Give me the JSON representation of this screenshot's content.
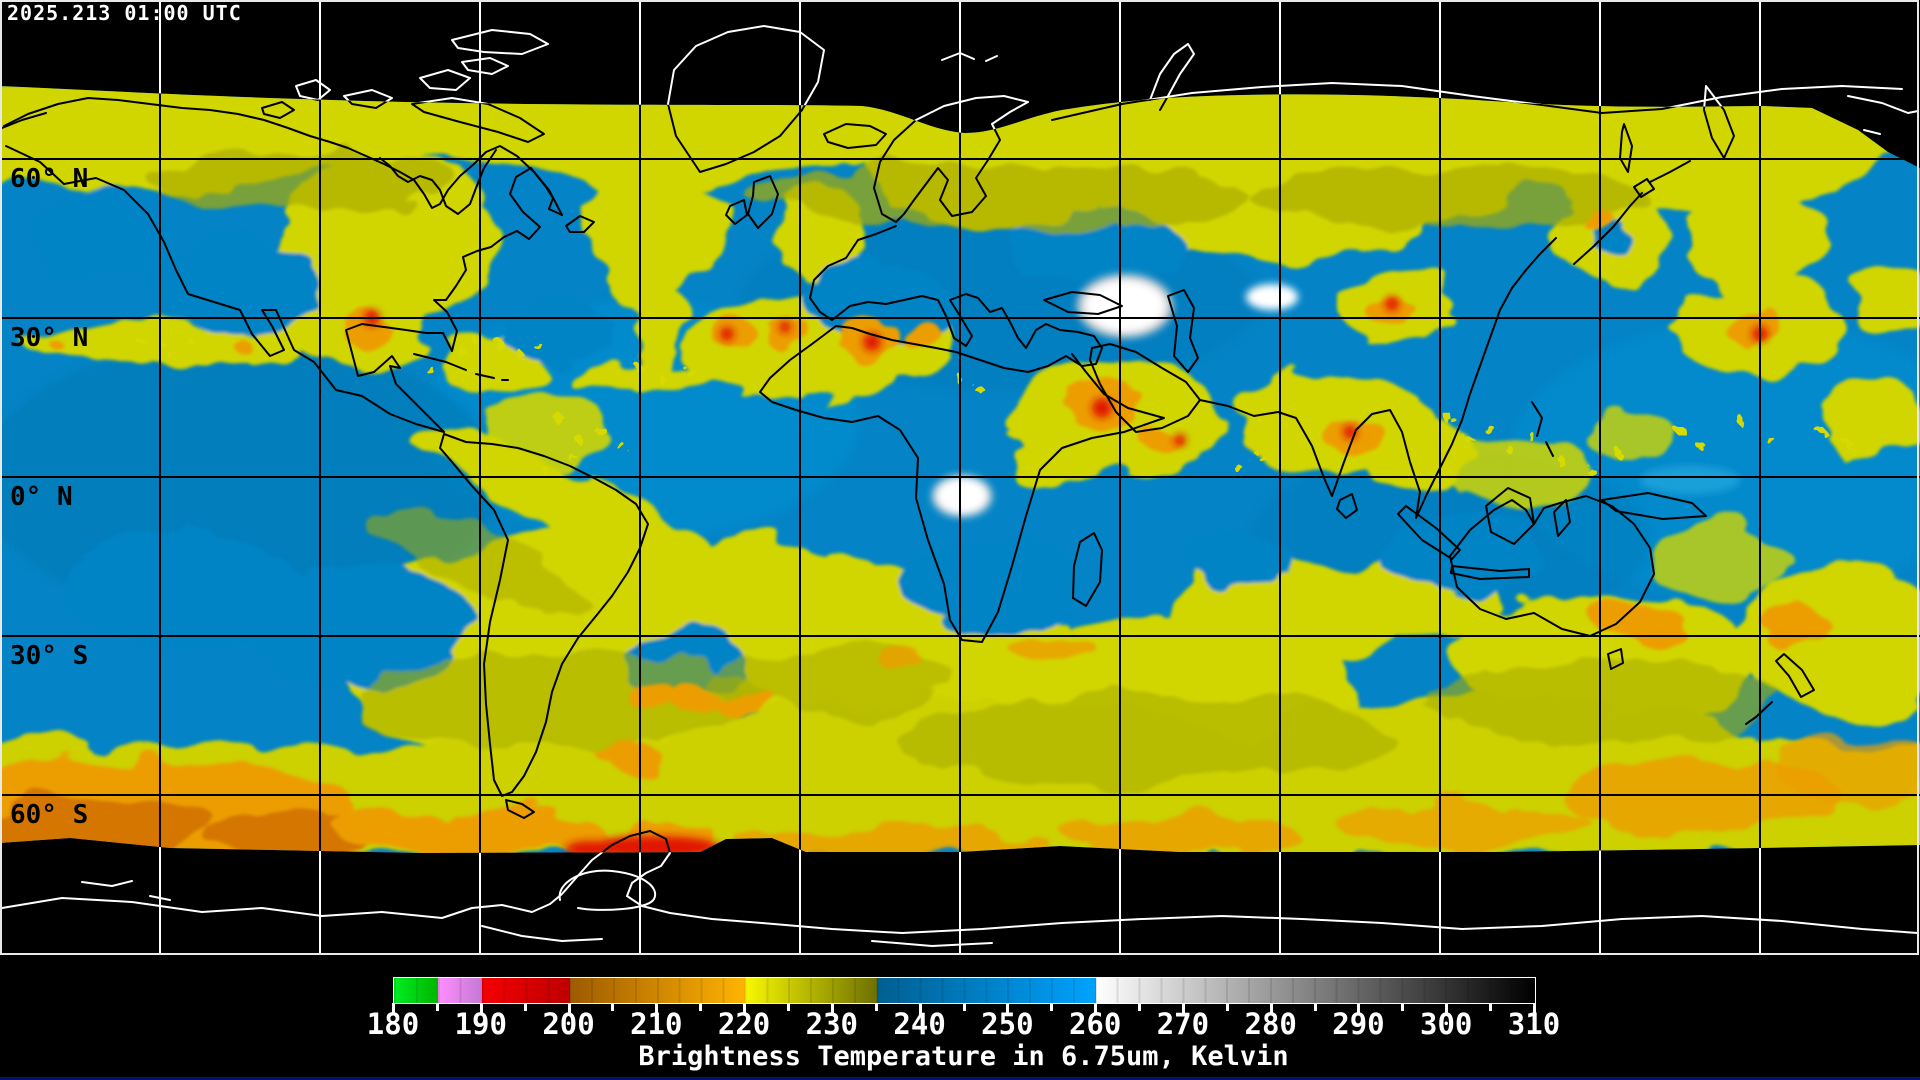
{
  "header": {
    "timestamp": "2025.213 01:00 UTC"
  },
  "map": {
    "latitude_labels": [
      {
        "label": "60° N"
      },
      {
        "label": "30° N"
      },
      {
        "label": "0° N"
      },
      {
        "label": "30° S"
      },
      {
        "label": "60° S"
      }
    ],
    "grid_color_over_data": "#000000",
    "grid_color_over_nodata": "#ffffff",
    "coastline_color_over_data": "#000000",
    "coastline_color_over_nodata": "#ffffff",
    "no_data_color": "#000000",
    "dominant_colors": {
      "dry_upper_air_blue": "#0484c6",
      "moist_yellow": "#d2d600",
      "cold_cloud_orange": "#ec9e00",
      "coldest_cloud_red": "#e11800",
      "warm_surface_white": "#ffffff"
    }
  },
  "colorbar": {
    "caption": "Brightness Temperature in 6.75um, Kelvin",
    "scale_min": 180,
    "scale_max": 310,
    "minor_tick_step": 5,
    "major_tick_step": 10,
    "tick_values": [
      180,
      190,
      200,
      210,
      220,
      230,
      240,
      250,
      260,
      270,
      280,
      290,
      300,
      310
    ],
    "segments": [
      {
        "from": 180,
        "to": 185,
        "colors": [
          "#00ee22",
          "#00b400"
        ]
      },
      {
        "from": 185,
        "to": 190,
        "colors": [
          "#ff8fff",
          "#c478d4"
        ]
      },
      {
        "from": 190,
        "to": 200,
        "colors": [
          "#f40000",
          "#bd0000"
        ]
      },
      {
        "from": 200,
        "to": 220,
        "colors": [
          "#9e5a00",
          "#ffb400"
        ]
      },
      {
        "from": 220,
        "to": 235,
        "colors": [
          "#f8f800",
          "#6e7000"
        ]
      },
      {
        "from": 235,
        "to": 260,
        "colors": [
          "#005f90",
          "#00a2ff"
        ]
      },
      {
        "from": 260,
        "to": 310,
        "colors": [
          "#ffffff",
          "#000000"
        ]
      }
    ]
  }
}
